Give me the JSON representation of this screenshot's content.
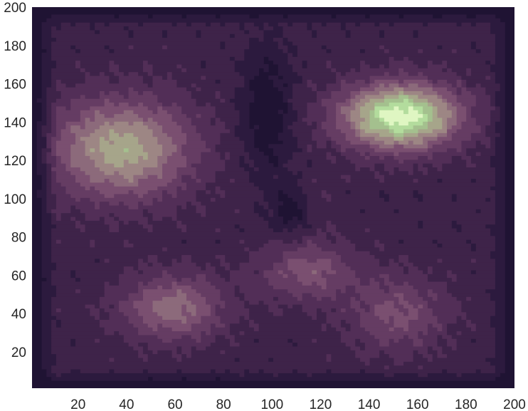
{
  "chart_data": {
    "type": "heatmap",
    "subtype": "filled-contour",
    "title": "",
    "xlabel": "",
    "ylabel": "",
    "xlim": [
      1,
      200
    ],
    "ylim": [
      1,
      200
    ],
    "x_ticks": [
      20,
      40,
      60,
      80,
      100,
      120,
      140,
      160,
      180,
      200
    ],
    "y_ticks": [
      20,
      40,
      60,
      80,
      100,
      120,
      140,
      160,
      180,
      200
    ],
    "grid": false,
    "legend": "none",
    "colormap": [
      "#1f1333",
      "#2c1a3e",
      "#3e2349",
      "#522e57",
      "#653c63",
      "#7a4f70",
      "#8c6a7b",
      "#9d8684",
      "#a6a58a",
      "#a4c08e",
      "#b3dc9d",
      "#dff6c2"
    ],
    "peaks": [
      {
        "x": 153,
        "y": 143,
        "level": 11
      },
      {
        "x": 38,
        "y": 126,
        "level": 9
      },
      {
        "x": 115,
        "y": 62,
        "level": 8
      },
      {
        "x": 59,
        "y": 43,
        "level": 8
      },
      {
        "x": 152,
        "y": 40,
        "level": 7
      },
      {
        "x": 114,
        "y": 98,
        "level": 6
      }
    ],
    "troughs": [
      {
        "x": 98,
        "y": 145,
        "level": 0
      },
      {
        "x": 108,
        "y": 95,
        "level": 0
      }
    ]
  }
}
